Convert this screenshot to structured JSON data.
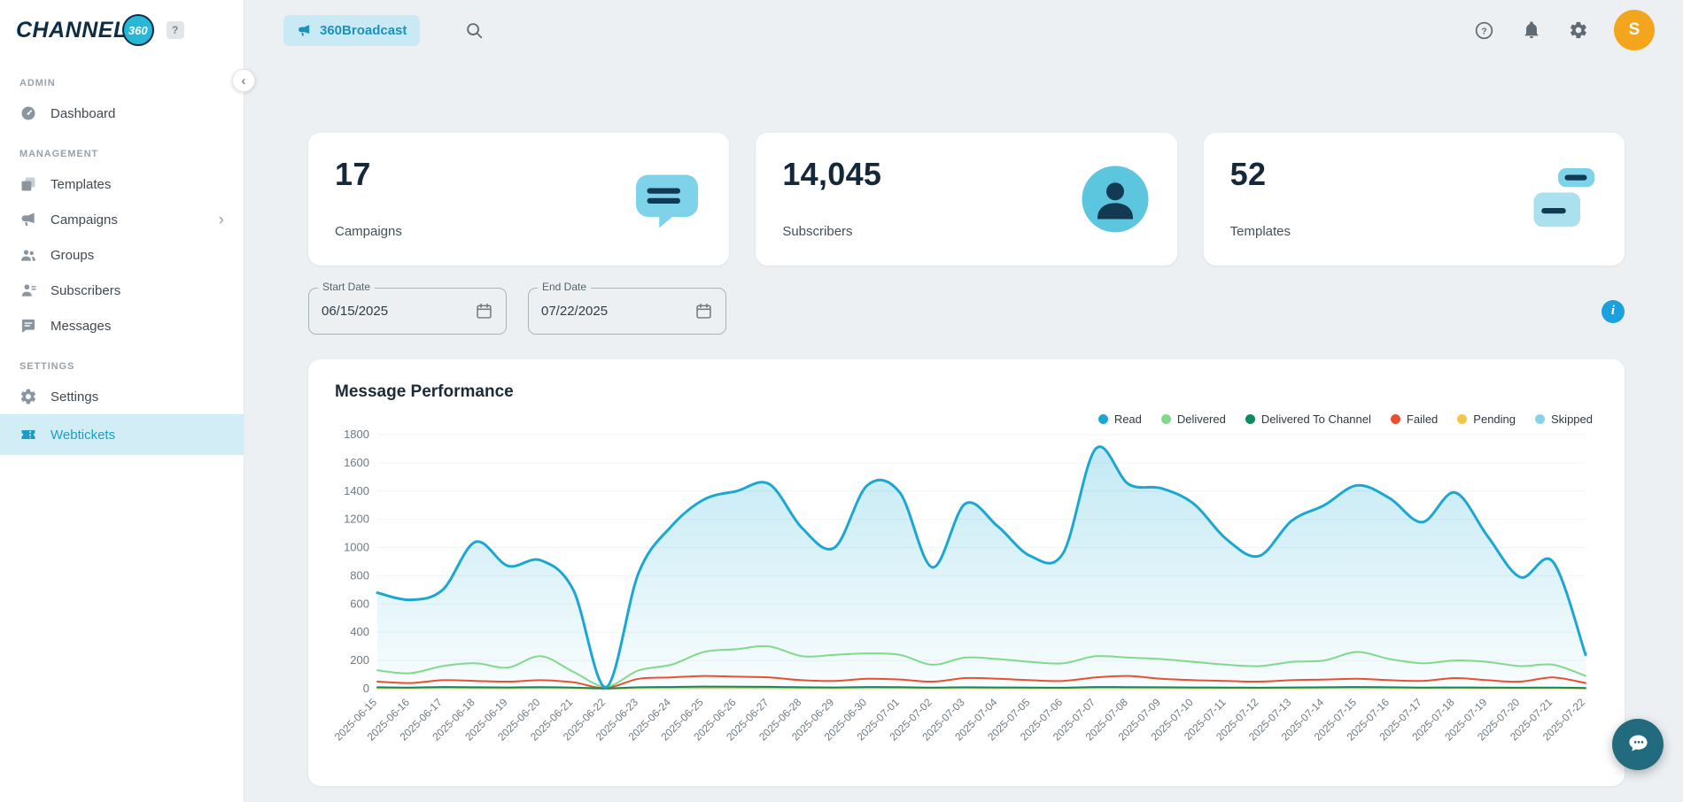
{
  "brand": {
    "logo_text": "CHANNEL",
    "logo_badge": "360",
    "accent_color": "#29b7d8",
    "help_icon": "help-badge-icon"
  },
  "header": {
    "tab": "360Broadcast",
    "tab_icon": "broadcast-icon",
    "search_icon": "search-icon",
    "right_icons": [
      "help-icon",
      "bell-icon",
      "gear-icon"
    ],
    "avatar_initial": "S",
    "avatar_color": "#f2a51d"
  },
  "sidebar": {
    "collapse_icon": "chevron-left-icon",
    "sections": [
      {
        "label": "ADMIN",
        "items": [
          {
            "label": "Dashboard",
            "icon": "dashboard-icon"
          }
        ]
      },
      {
        "label": "MANAGEMENT",
        "items": [
          {
            "label": "Templates",
            "icon": "templates-icon"
          },
          {
            "label": "Campaigns",
            "icon": "campaigns-icon",
            "chevron": true
          },
          {
            "label": "Groups",
            "icon": "groups-icon"
          },
          {
            "label": "Subscribers",
            "icon": "subscribers-icon"
          },
          {
            "label": "Messages",
            "icon": "messages-icon"
          }
        ]
      },
      {
        "label": "SETTINGS",
        "items": [
          {
            "label": "Settings",
            "icon": "settings-icon"
          }
        ]
      }
    ],
    "footer_item": {
      "label": "Webtickets",
      "icon": "webtickets-icon",
      "active": true,
      "active_bg": "#d2edf6",
      "active_color": "#1b9dc4"
    }
  },
  "stats": [
    {
      "value": "17",
      "label": "Campaigns",
      "icon": "campaigns-stat-icon"
    },
    {
      "value": "14,045",
      "label": "Subscribers",
      "icon": "subscribers-stat-icon"
    },
    {
      "value": "52",
      "label": "Templates",
      "icon": "templates-stat-icon"
    }
  ],
  "filters": {
    "start_date": {
      "label": "Start Date",
      "value": "06/15/2025",
      "icon": "calendar-icon"
    },
    "end_date": {
      "label": "End Date",
      "value": "07/22/2025",
      "icon": "calendar-icon"
    },
    "info_icon": "info-icon"
  },
  "chart_card": {
    "title": "Message Performance"
  },
  "chart_data": {
    "type": "line",
    "title": "Message Performance",
    "xlabel": "",
    "ylabel": "",
    "ylim": [
      0,
      1800
    ],
    "ytick_step": 200,
    "grid": true,
    "legend_position": "top-right",
    "x": [
      "2025-06-15",
      "2025-06-16",
      "2025-06-17",
      "2025-06-18",
      "2025-06-19",
      "2025-06-20",
      "2025-06-21",
      "2025-06-22",
      "2025-06-23",
      "2025-06-24",
      "2025-06-25",
      "2025-06-26",
      "2025-06-27",
      "2025-06-28",
      "2025-06-29",
      "2025-06-30",
      "2025-07-01",
      "2025-07-02",
      "2025-07-03",
      "2025-07-04",
      "2025-07-05",
      "2025-07-06",
      "2025-07-07",
      "2025-07-08",
      "2025-07-09",
      "2025-07-10",
      "2025-07-11",
      "2025-07-12",
      "2025-07-13",
      "2025-07-14",
      "2025-07-15",
      "2025-07-16",
      "2025-07-17",
      "2025-07-18",
      "2025-07-19",
      "2025-07-20",
      "2025-07-21",
      "2025-07-22"
    ],
    "series": [
      {
        "name": "Read",
        "color": "#1ca7d2",
        "area_fill": true,
        "values": [
          680,
          630,
          700,
          1040,
          870,
          910,
          700,
          10,
          820,
          1150,
          1340,
          1400,
          1450,
          1140,
          1000,
          1440,
          1390,
          860,
          1310,
          1150,
          940,
          960,
          1700,
          1450,
          1420,
          1310,
          1060,
          940,
          1190,
          1300,
          1440,
          1350,
          1180,
          1390,
          1080,
          790,
          900,
          240
        ]
      },
      {
        "name": "Delivered",
        "color": "#82d98c",
        "values": [
          130,
          110,
          160,
          180,
          150,
          230,
          120,
          15,
          130,
          170,
          260,
          280,
          300,
          230,
          240,
          250,
          240,
          170,
          220,
          210,
          190,
          180,
          230,
          220,
          210,
          190,
          170,
          160,
          190,
          200,
          260,
          210,
          180,
          200,
          190,
          160,
          170,
          90
        ]
      },
      {
        "name": "Delivered To Channel",
        "color": "#0e8a5f",
        "values": [
          10,
          8,
          12,
          10,
          9,
          11,
          8,
          2,
          10,
          12,
          15,
          14,
          13,
          10,
          9,
          12,
          11,
          8,
          10,
          9,
          8,
          7,
          12,
          11,
          10,
          9,
          8,
          7,
          9,
          10,
          12,
          10,
          8,
          9,
          8,
          7,
          8,
          5
        ]
      },
      {
        "name": "Failed",
        "color": "#e85030",
        "values": [
          50,
          40,
          60,
          55,
          50,
          60,
          45,
          5,
          70,
          80,
          90,
          85,
          80,
          60,
          55,
          70,
          65,
          50,
          75,
          70,
          60,
          55,
          80,
          90,
          70,
          60,
          55,
          50,
          60,
          65,
          70,
          60,
          55,
          75,
          60,
          50,
          80,
          40
        ]
      },
      {
        "name": "Pending",
        "color": "#f3c64b",
        "values": [
          3,
          3,
          4,
          3,
          3,
          4,
          3,
          1,
          3,
          4,
          5,
          4,
          4,
          3,
          3,
          4,
          4,
          3,
          4,
          3,
          3,
          3,
          4,
          4,
          3,
          3,
          3,
          3,
          3,
          4,
          4,
          3,
          3,
          4,
          3,
          3,
          3,
          2
        ]
      },
      {
        "name": "Skipped",
        "color": "#86d3e6",
        "values": [
          6,
          5,
          7,
          6,
          6,
          7,
          5,
          1,
          6,
          7,
          8,
          8,
          7,
          6,
          6,
          7,
          7,
          5,
          7,
          6,
          6,
          6,
          8,
          7,
          7,
          6,
          6,
          5,
          6,
          7,
          8,
          6,
          6,
          7,
          6,
          5,
          6,
          4
        ]
      }
    ]
  },
  "chat_widget": {
    "icon": "chat-bubble-icon",
    "color": "#226b7e"
  }
}
